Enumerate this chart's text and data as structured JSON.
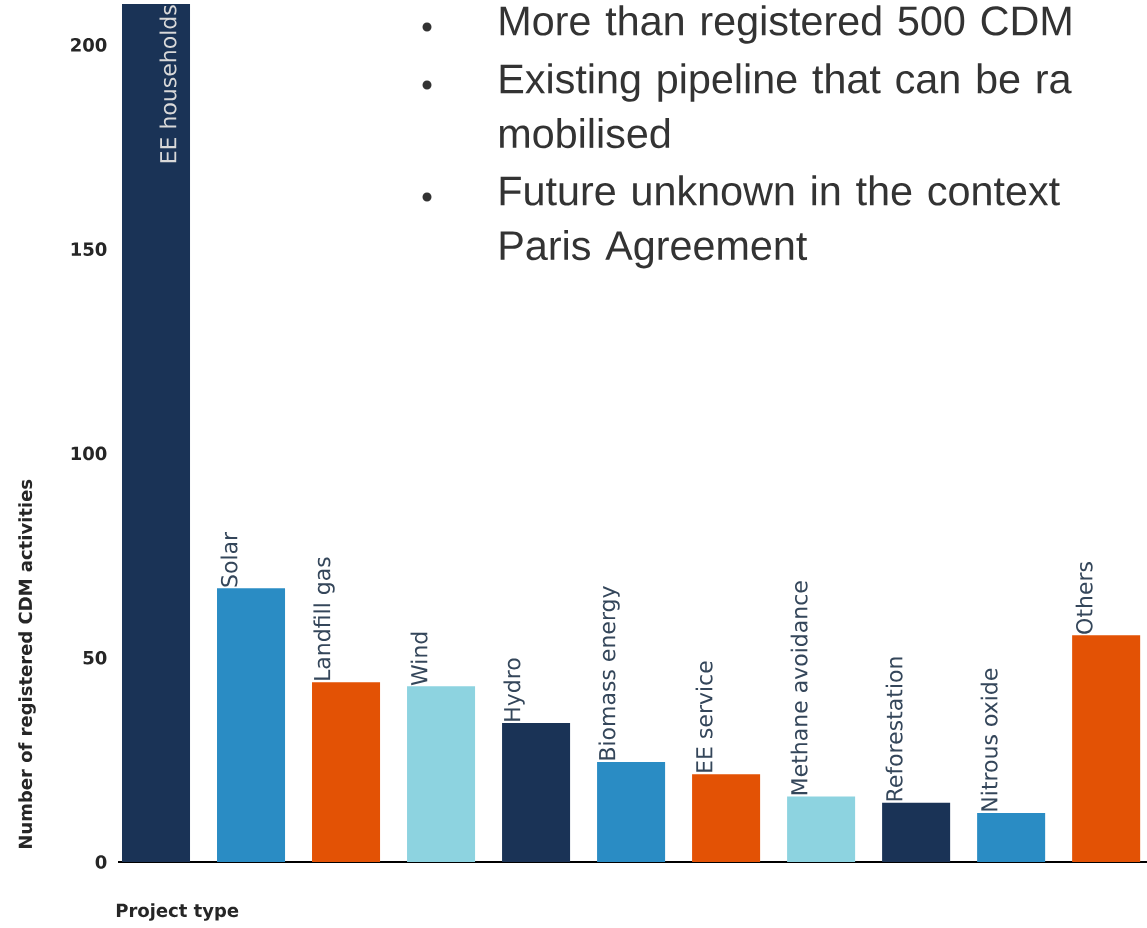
{
  "chart_data": {
    "type": "bar",
    "xlabel": "Project type",
    "ylabel": "Number of registered CDM activities",
    "categories": [
      "EE households",
      "Solar",
      "Landfill gas",
      "Wind",
      "Hydro",
      "Biomass energy",
      "EE service",
      "Methane avoidance",
      "Reforestation",
      "Nitrous oxide",
      "Others"
    ],
    "values": [
      210,
      67,
      44,
      43,
      34,
      24.5,
      21.5,
      16,
      14.5,
      12,
      55.5
    ],
    "colors": [
      "#1a3356",
      "#2a8cc4",
      "#e35205",
      "#8dd3e0",
      "#1a3356",
      "#2a8cc4",
      "#e35205",
      "#8dd3e0",
      "#1a3356",
      "#2a8cc4",
      "#e35205"
    ],
    "ylim": [
      0,
      210
    ],
    "yticks": [
      0,
      50,
      100,
      150,
      200
    ],
    "annotations": [
      "More than registered 500 CDM",
      "Existing pipeline that can be ra mobilised",
      "Future unknown in the context Paris Agreement"
    ]
  }
}
